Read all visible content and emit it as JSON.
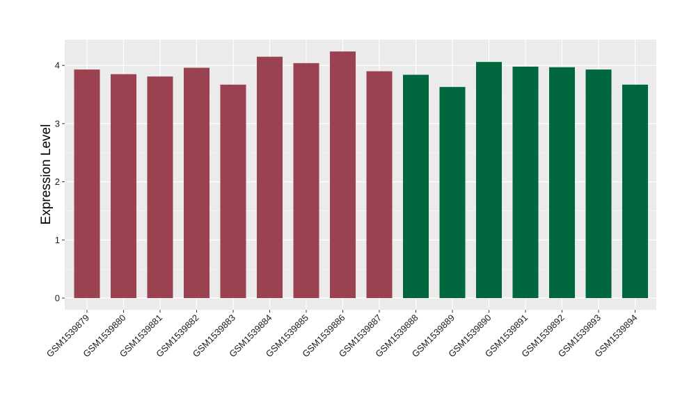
{
  "chart_data": {
    "type": "bar",
    "title": "",
    "xlabel": "",
    "ylabel": "Expression Level",
    "ylim": [
      0,
      4.45
    ],
    "yticks": [
      0,
      1,
      2,
      3,
      4
    ],
    "categories": [
      "GSM1539879",
      "GSM1539880",
      "GSM1539881",
      "GSM1539882",
      "GSM1539883",
      "GSM1539884",
      "GSM1539885",
      "GSM1539886",
      "GSM1539887",
      "GSM1539888",
      "GSM1539889",
      "GSM1539890",
      "GSM1539891",
      "GSM1539892",
      "GSM1539893",
      "GSM1539894"
    ],
    "values": [
      3.93,
      3.85,
      3.81,
      3.96,
      3.67,
      4.15,
      4.04,
      4.24,
      3.9,
      3.84,
      3.63,
      4.06,
      3.98,
      3.97,
      3.93,
      3.67
    ],
    "bar_colors": [
      "#9a4250",
      "#9a4250",
      "#9a4250",
      "#9a4250",
      "#9a4250",
      "#9a4250",
      "#9a4250",
      "#9a4250",
      "#9a4250",
      "#00673f",
      "#00673f",
      "#00673f",
      "#00673f",
      "#00673f",
      "#00673f",
      "#00673f"
    ],
    "grid": true,
    "panel_background": "#ebebeb",
    "grid_color": "#ffffff"
  }
}
